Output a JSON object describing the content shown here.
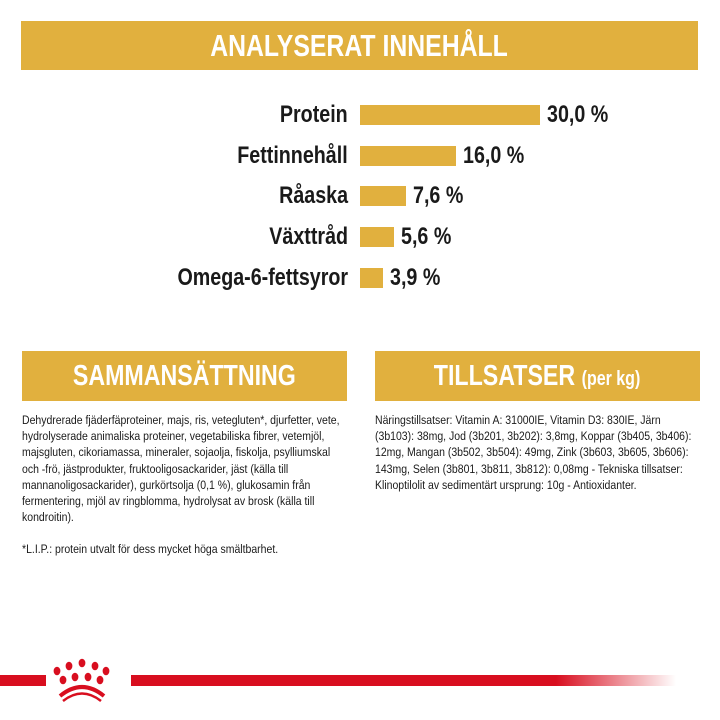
{
  "analysis": {
    "title": "ANALYSERAT INNEHÅLL",
    "bar_color": "#e1b03e",
    "items": [
      {
        "label": "Protein",
        "value": 30.0,
        "display": "30,0 %"
      },
      {
        "label": "Fettinnehåll",
        "value": 16.0,
        "display": "16,0 %"
      },
      {
        "label": "Råaska",
        "value": 7.6,
        "display": "7,6 %"
      },
      {
        "label": "Växttråd",
        "value": 5.6,
        "display": "5,6 %"
      },
      {
        "label": "Omega-6-fettsyror",
        "value": 3.9,
        "display": "3,9 %"
      }
    ]
  },
  "composition": {
    "title": "SAMMANSÄTTNING",
    "text": "Dehydrerade fjäderfäproteiner, majs, ris, vetegluten*, djurfetter, vete, hydrolyserade animaliska proteiner, vegetabiliska fibrer, vetemjöl, majsgluten, cikoriamassa, mineraler, sojaolja, fiskolja, psylliumskal och -frö, jästprodukter, fruktooligosackarider, jäst (källa till mannanoligosackarider), gurkörtsolja (0,1 %), glukosamin från fermentering, mjöl av ringblomma, hydrolysat av brosk (källa till kondroitin).",
    "footnote": "*L.I.P.: protein utvalt för dess mycket höga smältbarhet."
  },
  "additives": {
    "title": "TILLSATSER",
    "title_suffix": "(per kg)",
    "text": "Näringstillsatser: Vitamin A: 31000IE, Vitamin D3: 830IE, Järn (3b103): 38mg, Jod (3b201, 3b202): 3,8mg, Koppar (3b405, 3b406): 12mg, Mangan (3b502, 3b504): 49mg, Zink (3b603, 3b605, 3b606): 143mg, Selen (3b801, 3b811, 3b812): 0,08mg - Tekniska tillsatser: Klinoptilolit av sedimentärt ursprung: 10g - Antioxidanter."
  },
  "brand": {
    "logo": "royal-canin-crown",
    "color": "#d80e1f"
  }
}
